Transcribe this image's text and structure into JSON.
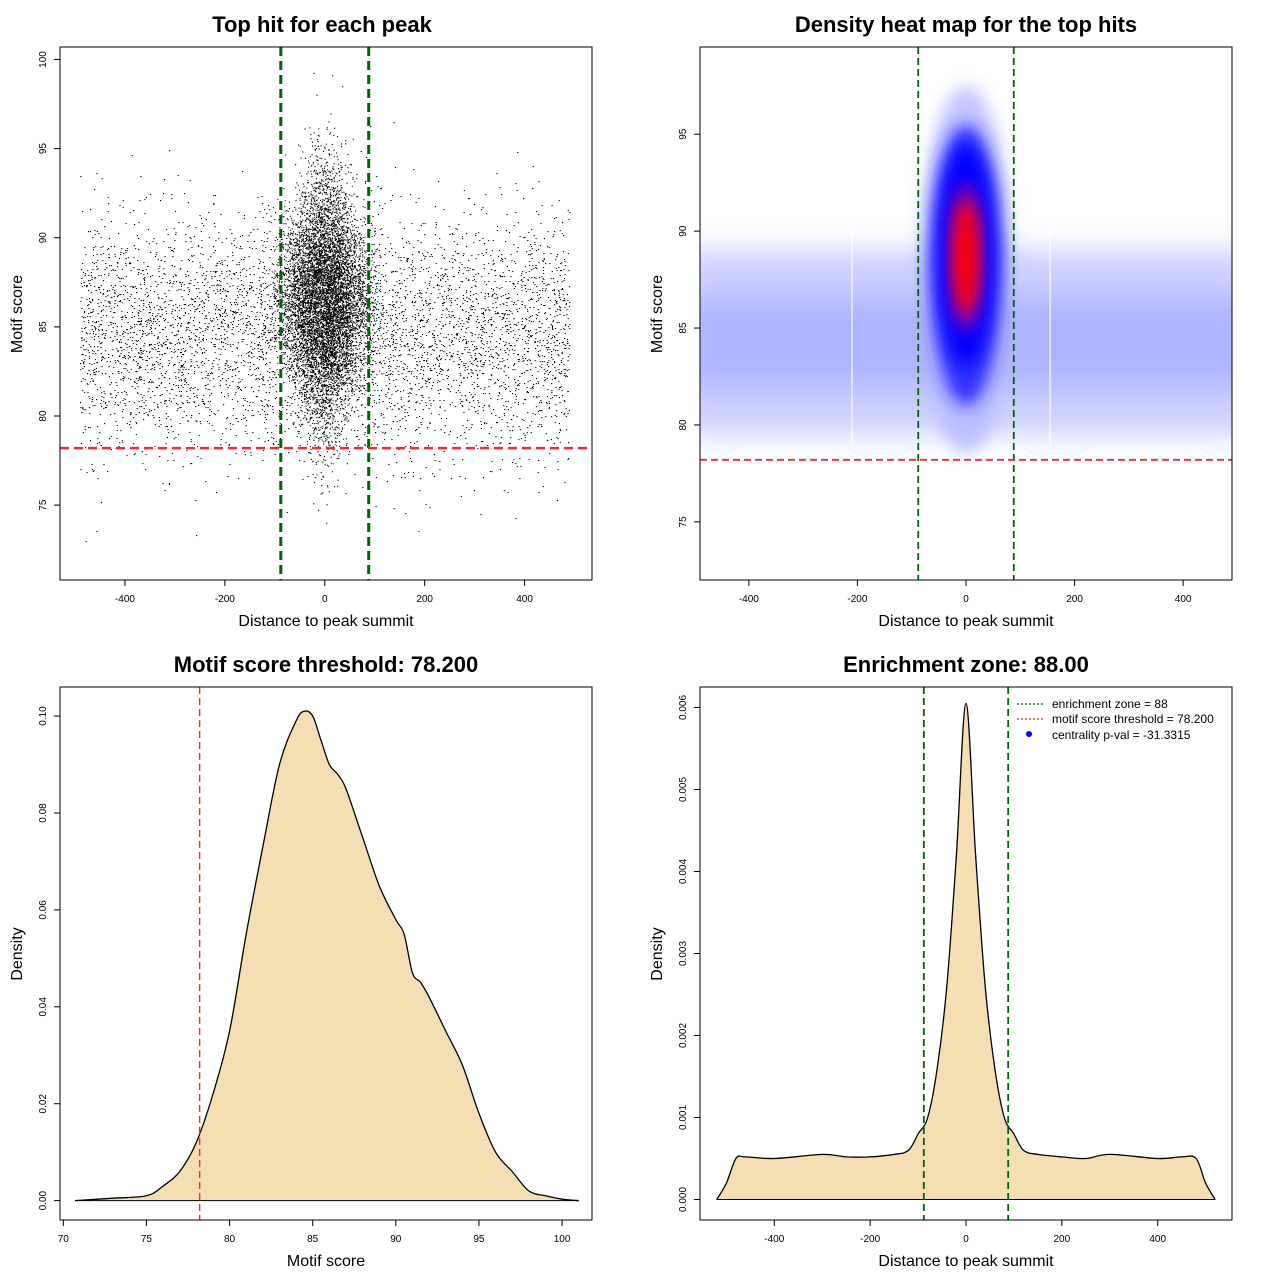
{
  "colors": {
    "point": "#000000",
    "zone_line": "#006400",
    "threshold_line": "#e8302a",
    "density_fill": "#f5deb3",
    "density_stroke": "#000000",
    "heat_low": "#ffffff",
    "heat_mid": "#0000ff",
    "heat_high": "#ff0000",
    "legend_dot": "#0000ff"
  },
  "chart_data": [
    {
      "id": "scatter",
      "type": "scatter",
      "title": "Top hit for each peak",
      "xlabel": "Distance to peak summit",
      "ylabel": "Motif score",
      "xlim": [
        -530,
        535
      ],
      "ylim": [
        70.8,
        100.7
      ],
      "xticks": [
        -400,
        -200,
        0,
        200,
        400
      ],
      "yticks": [
        75,
        80,
        85,
        90,
        95,
        100
      ],
      "xtick_labels": [
        "-400",
        "-200",
        "0",
        "200",
        "400"
      ],
      "ytick_labels": [
        "75",
        "80",
        "85",
        "90",
        "95",
        "100"
      ],
      "zone_lines_x": [
        -88,
        88
      ],
      "threshold_y": 78.2,
      "point_summary": {
        "n_points_approx": 30000,
        "x_range": [
          -490,
          490
        ],
        "background_score_mean": 84.5,
        "background_score_sd": 3.3,
        "central_score_mean": 86.5,
        "central_score_sd": 3.8,
        "central_x_sd": 40,
        "score_max": 99.6,
        "score_min": 71.9
      }
    },
    {
      "id": "heatmap",
      "type": "heatmap",
      "title": "Density heat map for the top hits",
      "xlabel": "Distance to peak summit",
      "ylabel": "Motif score",
      "xlim": [
        -490,
        490
      ],
      "ylim": [
        72,
        99.5
      ],
      "xticks": [
        -400,
        -200,
        0,
        200,
        400
      ],
      "yticks": [
        75,
        80,
        85,
        90,
        95
      ],
      "xtick_labels": [
        "-400",
        "-200",
        "0",
        "200",
        "400"
      ],
      "ytick_labels": [
        "75",
        "80",
        "85",
        "90",
        "95"
      ],
      "zone_lines_x": [
        -88,
        88
      ],
      "threshold_y": 78.2,
      "hotspot": {
        "x": 0,
        "y": 88.5
      }
    },
    {
      "id": "score-density",
      "type": "area",
      "title": "Motif score threshold: 78.200",
      "xlabel": "Motif score",
      "ylabel": "Density",
      "xlim": [
        69.8,
        101.8
      ],
      "ylim": [
        -0.004,
        0.106
      ],
      "xticks": [
        70,
        75,
        80,
        85,
        90,
        95,
        100
      ],
      "yticks": [
        0.0,
        0.02,
        0.04,
        0.06,
        0.08,
        0.1
      ],
      "xtick_labels": [
        "70",
        "75",
        "80",
        "85",
        "90",
        "95",
        "100"
      ],
      "ytick_labels": [
        "0.00",
        "0.02",
        "0.04",
        "0.06",
        "0.08",
        "0.10"
      ],
      "threshold_x": 78.2,
      "x": [
        70.7,
        73,
        75,
        76,
        77,
        78,
        79,
        80,
        81,
        82,
        83,
        84,
        84.5,
        85,
        85.5,
        86,
        86.5,
        87,
        88,
        89,
        90,
        90.5,
        91,
        91.5,
        92,
        93,
        94,
        95,
        96,
        97,
        98,
        99,
        100,
        101
      ],
      "y": [
        0.0,
        0.0005,
        0.001,
        0.003,
        0.006,
        0.012,
        0.022,
        0.035,
        0.055,
        0.073,
        0.09,
        0.099,
        0.101,
        0.1,
        0.095,
        0.09,
        0.088,
        0.085,
        0.075,
        0.065,
        0.058,
        0.055,
        0.047,
        0.045,
        0.042,
        0.035,
        0.028,
        0.018,
        0.01,
        0.006,
        0.002,
        0.001,
        0.0003,
        0.0
      ]
    },
    {
      "id": "distance-density",
      "type": "area",
      "title": "Enrichment zone: 88.00",
      "xlabel": "Distance to peak summit",
      "ylabel": "Density",
      "xlim": [
        -555,
        555
      ],
      "ylim": [
        -0.00025,
        0.00625
      ],
      "xticks": [
        -400,
        -200,
        0,
        200,
        400
      ],
      "yticks": [
        0.0,
        0.001,
        0.002,
        0.003,
        0.004,
        0.005,
        0.006
      ],
      "xtick_labels": [
        "-400",
        "-200",
        "0",
        "200",
        "400"
      ],
      "ytick_labels": [
        "0.000",
        "0.001",
        "0.002",
        "0.003",
        "0.004",
        "0.005",
        "0.006"
      ],
      "zone_lines_x": [
        -88,
        88
      ],
      "x": [
        -520,
        -500,
        -480,
        -460,
        -400,
        -300,
        -250,
        -200,
        -150,
        -120,
        -100,
        -80,
        -60,
        -40,
        -20,
        0,
        20,
        40,
        60,
        80,
        100,
        120,
        150,
        200,
        250,
        300,
        400,
        450,
        480,
        500,
        520
      ],
      "y": [
        0.0,
        0.0002,
        0.0005,
        0.00052,
        0.0005,
        0.00055,
        0.00052,
        0.00052,
        0.00055,
        0.0006,
        0.0008,
        0.001,
        0.0016,
        0.0026,
        0.0042,
        0.00605,
        0.0042,
        0.0026,
        0.0016,
        0.001,
        0.0008,
        0.0006,
        0.00055,
        0.00052,
        0.0005,
        0.00055,
        0.0005,
        0.00052,
        0.0005,
        0.0002,
        0.0
      ],
      "legend": [
        {
          "label": "enrichment zone = 88",
          "symbol": "dotted-line",
          "color": "#006400"
        },
        {
          "label": "motif score threshold = 78.200",
          "symbol": "dotted-line",
          "color": "#e8302a"
        },
        {
          "label": "centrality p-val = -31.3315",
          "symbol": "dot",
          "color": "#0000ff"
        }
      ],
      "legend_position": "top-right"
    }
  ]
}
